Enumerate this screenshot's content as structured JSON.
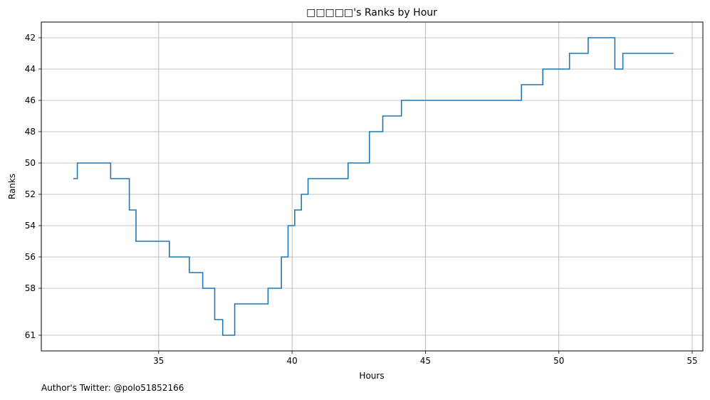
{
  "chart_data": {
    "type": "line",
    "title": "□□□□□'s Ranks by Hour",
    "xlabel": "Hours",
    "ylabel": "Ranks",
    "xlim": [
      30.6,
      55.4
    ],
    "ylim": [
      62,
      41
    ],
    "y_inverted": true,
    "grid": true,
    "step": "post",
    "color": "#1f77b4",
    "x_ticks": [
      35,
      40,
      45,
      50,
      55
    ],
    "y_ticks": [
      42,
      44,
      46,
      48,
      50,
      52,
      54,
      56,
      58,
      61
    ],
    "series": [
      {
        "x": [
          31.8,
          31.95,
          33.2,
          33.9,
          34.15,
          35.4,
          36.15,
          36.65,
          37.1,
          37.4,
          37.85,
          39.1,
          39.6,
          39.85,
          40.1,
          40.35,
          40.6,
          42.1,
          42.9,
          43.4,
          44.1,
          48.6,
          49.4,
          50.4,
          51.1,
          52.1,
          52.4,
          54.3
        ],
        "y": [
          51,
          50,
          51,
          53,
          55,
          56,
          57,
          58,
          60,
          61,
          59,
          58,
          56,
          54,
          53,
          52,
          51,
          50,
          48,
          47,
          46,
          45,
          44,
          43,
          42,
          44,
          43,
          43
        ]
      }
    ]
  },
  "footer": {
    "credit": "Author's Twitter: @polo51852166"
  }
}
